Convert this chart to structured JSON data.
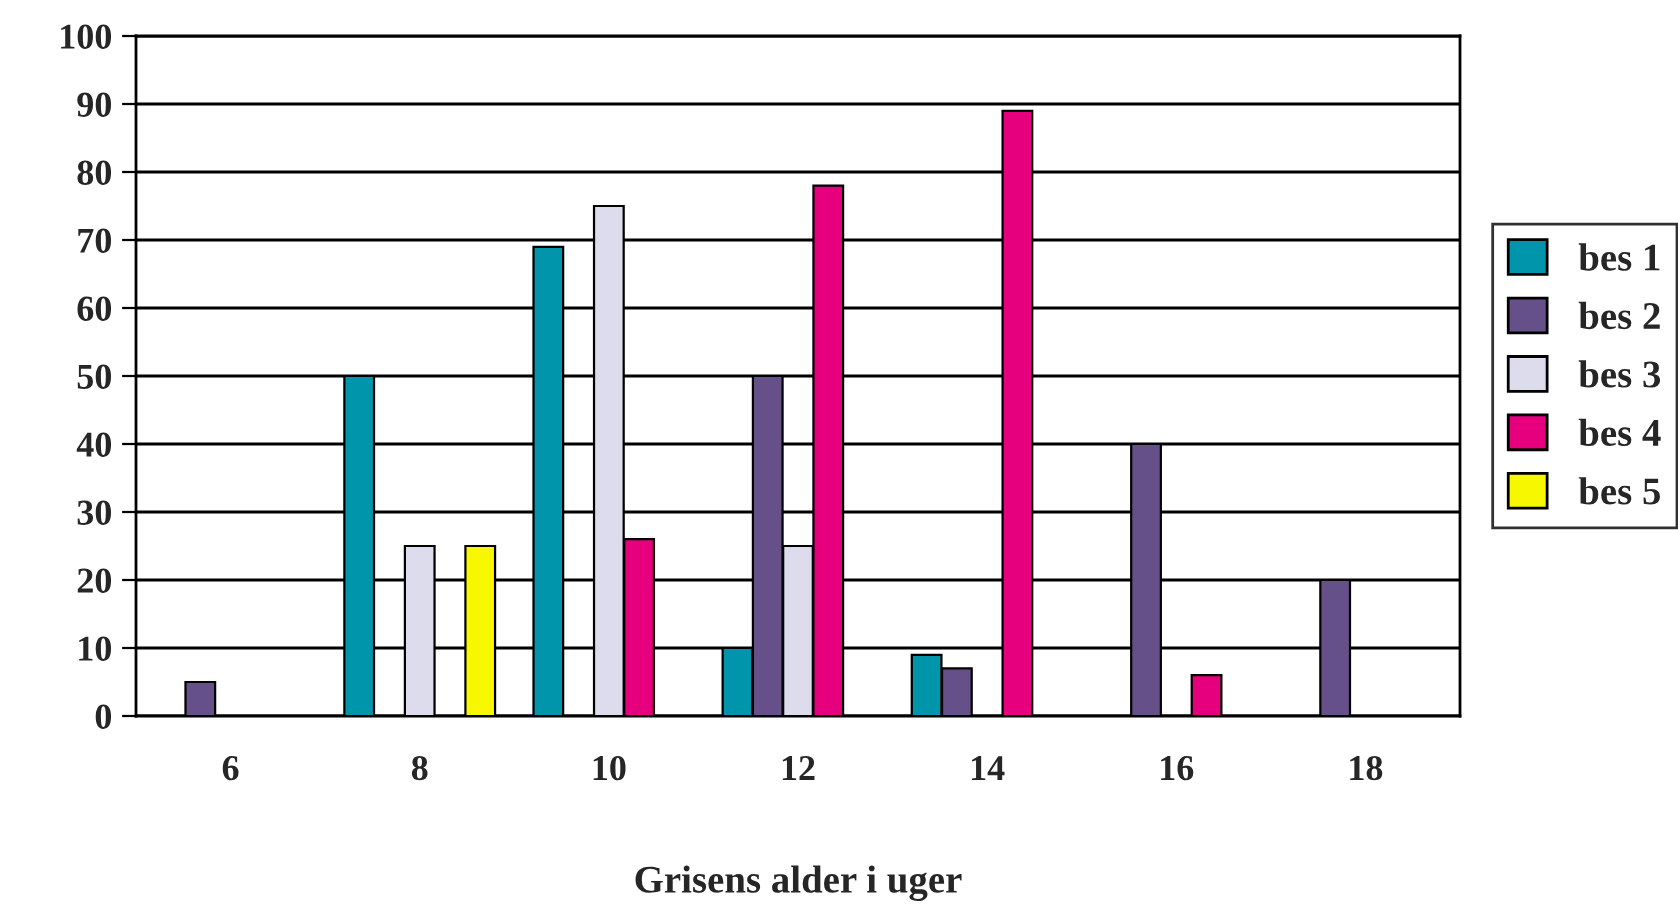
{
  "chart_data": {
    "type": "bar",
    "xlabel": "Grisens alder i uger",
    "categories": [
      "6",
      "8",
      "10",
      "12",
      "14",
      "16",
      "18"
    ],
    "series": [
      {
        "name": "bes 1",
        "color": "#0095ab",
        "values": [
          null,
          50,
          69,
          10,
          9,
          null,
          null
        ]
      },
      {
        "name": "bes 2",
        "color": "#665089",
        "values": [
          5,
          null,
          null,
          50,
          7,
          40,
          20
        ]
      },
      {
        "name": "bes 3",
        "color": "#dcdcec",
        "values": [
          null,
          25,
          75,
          25,
          null,
          null,
          null
        ]
      },
      {
        "name": "bes 4",
        "color": "#e6007e",
        "values": [
          null,
          null,
          26,
          78,
          89,
          6,
          null
        ]
      },
      {
        "name": "bes 5",
        "color": "#f7f700",
        "values": [
          null,
          25,
          null,
          null,
          null,
          null,
          null
        ]
      }
    ],
    "ylim": [
      0,
      100
    ],
    "yticks": [
      0,
      10,
      20,
      30,
      40,
      50,
      60,
      70,
      80,
      90,
      100
    ],
    "grid": "y",
    "legend": "right"
  }
}
